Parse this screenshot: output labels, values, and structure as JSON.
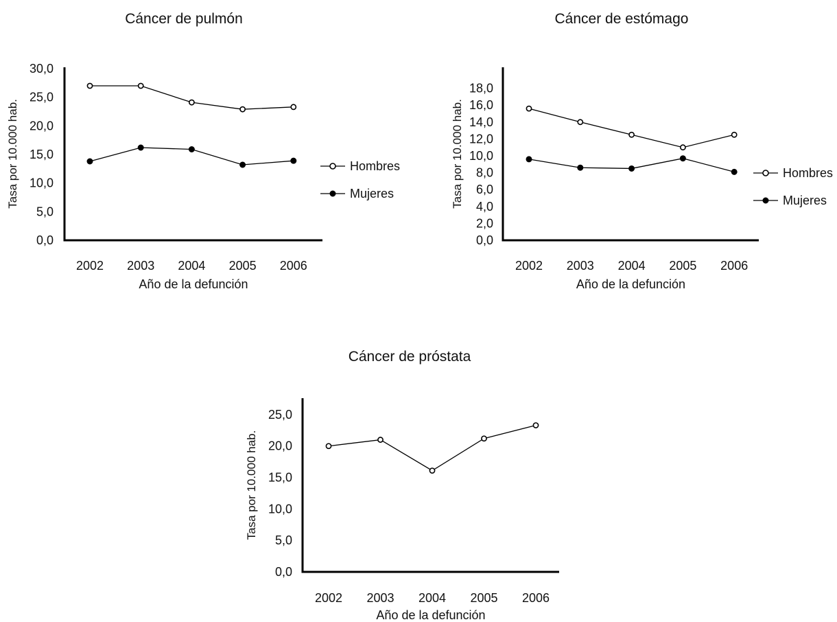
{
  "chart_data": [
    {
      "type": "line",
      "title": "Cáncer de pulmón",
      "xlabel": "Año de la defunción",
      "ylabel": "Tasa por 10.000 hab.",
      "categories": [
        "2002",
        "2003",
        "2004",
        "2005",
        "2006"
      ],
      "ylim": [
        0,
        30
      ],
      "yticks": [
        "0,0",
        "5,0",
        "10,0",
        "15,0",
        "20,0",
        "25,0",
        "30,0"
      ],
      "ytick_values": [
        0,
        5,
        10,
        15,
        20,
        25,
        30
      ],
      "grid": false,
      "legend_position": "right",
      "series": [
        {
          "name": "Hombres",
          "marker": "open",
          "values": [
            27.0,
            27.0,
            24.1,
            22.9,
            23.3
          ]
        },
        {
          "name": "Mujeres",
          "marker": "filled",
          "values": [
            13.8,
            16.2,
            15.9,
            13.2,
            13.9
          ]
        }
      ]
    },
    {
      "type": "line",
      "title": "Cáncer de estómago",
      "xlabel": "Año de la defunción",
      "ylabel": "Tasa por 10.000 hab.",
      "categories": [
        "2002",
        "2003",
        "2004",
        "2005",
        "2006"
      ],
      "ylim": [
        0,
        20
      ],
      "yticks": [
        "0,0",
        "2,0",
        "4,0",
        "6,0",
        "8,0",
        "10,0",
        "12,0",
        "14,0",
        "16,0",
        "18,0"
      ],
      "ytick_values": [
        0,
        2,
        4,
        6,
        8,
        10,
        12,
        14,
        16,
        18
      ],
      "grid": false,
      "legend_position": "right",
      "series": [
        {
          "name": "Hombres",
          "marker": "open",
          "values": [
            15.6,
            14.0,
            12.5,
            11.0,
            12.5
          ]
        },
        {
          "name": "Mujeres",
          "marker": "filled",
          "values": [
            9.6,
            8.6,
            8.5,
            9.7,
            8.1
          ]
        }
      ]
    },
    {
      "type": "line",
      "title": "Cáncer de próstata",
      "xlabel": "Año de la defunción",
      "ylabel": "Tasa por 10.000 hab.",
      "categories": [
        "2002",
        "2003",
        "2004",
        "2005",
        "2006"
      ],
      "ylim": [
        0,
        27.5
      ],
      "yticks": [
        "0,0",
        "5,0",
        "10,0",
        "15,0",
        "20,0",
        "25,0"
      ],
      "ytick_values": [
        0,
        5,
        10,
        15,
        20,
        25
      ],
      "grid": false,
      "legend_position": "none",
      "series": [
        {
          "name": "",
          "marker": "open",
          "values": [
            20.0,
            21.0,
            16.1,
            21.2,
            23.3
          ]
        }
      ]
    }
  ]
}
